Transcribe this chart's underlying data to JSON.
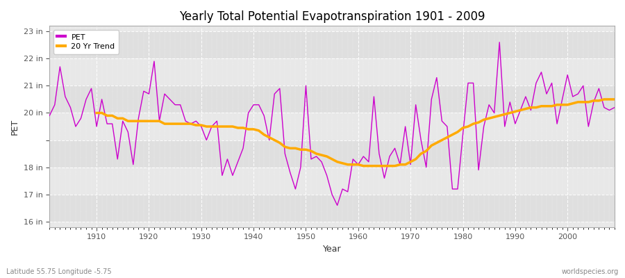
{
  "title": "Yearly Total Potential Evapotranspiration 1901 - 2009",
  "xlabel": "Year",
  "ylabel": "PET",
  "x_label_bottom_left": "Latitude 55.75 Longitude -5.75",
  "x_label_bottom_right": "worldspecies.org",
  "fig_bg_color": "#ffffff",
  "plot_bg_color": "#e8e8e8",
  "pet_color": "#cc00cc",
  "trend_color": "#ffaa00",
  "ylim": [
    15.8,
    23.2
  ],
  "yticks": [
    16,
    17,
    18,
    19,
    20,
    21,
    22,
    23
  ],
  "ytick_labels": [
    "16 in",
    "17 in",
    "18 in",
    "",
    "20 in",
    "21 in",
    "22 in",
    "23 in"
  ],
  "xlim": [
    1901,
    2009
  ],
  "years": [
    1901,
    1902,
    1903,
    1904,
    1905,
    1906,
    1907,
    1908,
    1909,
    1910,
    1911,
    1912,
    1913,
    1914,
    1915,
    1916,
    1917,
    1918,
    1919,
    1920,
    1921,
    1922,
    1923,
    1924,
    1925,
    1926,
    1927,
    1928,
    1929,
    1930,
    1931,
    1932,
    1933,
    1934,
    1935,
    1936,
    1937,
    1938,
    1939,
    1940,
    1941,
    1942,
    1943,
    1944,
    1945,
    1946,
    1947,
    1948,
    1949,
    1950,
    1951,
    1952,
    1953,
    1954,
    1955,
    1956,
    1957,
    1958,
    1959,
    1960,
    1961,
    1962,
    1963,
    1964,
    1965,
    1966,
    1967,
    1968,
    1969,
    1970,
    1971,
    1972,
    1973,
    1974,
    1975,
    1976,
    1977,
    1978,
    1979,
    1980,
    1981,
    1982,
    1983,
    1984,
    1985,
    1986,
    1987,
    1988,
    1989,
    1990,
    1991,
    1992,
    1993,
    1994,
    1995,
    1996,
    1997,
    1998,
    1999,
    2000,
    2001,
    2002,
    2003,
    2004,
    2005,
    2006,
    2007,
    2008,
    2009
  ],
  "pet": [
    19.9,
    20.3,
    21.7,
    20.6,
    20.2,
    19.5,
    19.8,
    20.5,
    20.9,
    19.5,
    20.5,
    19.6,
    19.6,
    18.3,
    19.7,
    19.3,
    18.1,
    19.8,
    20.8,
    20.7,
    21.9,
    19.7,
    20.7,
    20.5,
    20.3,
    20.3,
    19.7,
    19.6,
    19.7,
    19.5,
    19.0,
    19.5,
    19.7,
    17.7,
    18.3,
    17.7,
    18.2,
    18.7,
    20.0,
    20.3,
    20.3,
    19.9,
    19.0,
    20.7,
    20.9,
    18.5,
    17.8,
    17.2,
    18.0,
    21.0,
    18.3,
    18.4,
    18.2,
    17.7,
    17.0,
    16.6,
    17.2,
    17.1,
    18.3,
    18.1,
    18.4,
    18.2,
    20.6,
    18.5,
    17.6,
    18.4,
    18.7,
    18.1,
    19.5,
    18.1,
    20.3,
    19.0,
    18.0,
    20.5,
    21.3,
    19.7,
    19.5,
    17.2,
    17.2,
    19.2,
    21.1,
    21.1,
    17.9,
    19.5,
    20.3,
    20.0,
    22.6,
    19.5,
    20.4,
    19.6,
    20.1,
    20.6,
    20.1,
    21.1,
    21.5,
    20.7,
    21.1,
    19.6,
    20.5,
    21.4,
    20.6,
    20.7,
    21.0,
    19.5,
    20.4,
    20.9,
    20.2,
    20.1,
    20.2
  ],
  "trend_years": [
    1910,
    1911,
    1912,
    1913,
    1914,
    1915,
    1916,
    1917,
    1918,
    1919,
    1920,
    1921,
    1922,
    1923,
    1924,
    1925,
    1926,
    1927,
    1928,
    1929,
    1930,
    1931,
    1932,
    1933,
    1934,
    1935,
    1936,
    1937,
    1938,
    1939,
    1940,
    1941,
    1942,
    1943,
    1944,
    1945,
    1946,
    1947,
    1948,
    1949,
    1950,
    1951,
    1952,
    1953,
    1954,
    1955,
    1956,
    1957,
    1958,
    1959,
    1960,
    1961,
    1962,
    1963,
    1964,
    1965,
    1966,
    1967,
    1968,
    1969,
    1970,
    1971,
    1972,
    1973,
    1974,
    1975,
    1976,
    1977,
    1978,
    1979,
    1980,
    1981,
    1982,
    1983,
    1984,
    1985,
    1986,
    1987,
    1988,
    1989,
    1990,
    1991,
    1992,
    1993,
    1994,
    1995,
    1996,
    1997,
    1998,
    1999,
    2000,
    2001,
    2002,
    2003,
    2004,
    2005,
    2006,
    2007,
    2008,
    2009
  ],
  "trend": [
    20.0,
    20.0,
    19.9,
    19.9,
    19.8,
    19.8,
    19.7,
    19.7,
    19.7,
    19.7,
    19.7,
    19.7,
    19.7,
    19.6,
    19.6,
    19.6,
    19.6,
    19.6,
    19.6,
    19.55,
    19.55,
    19.5,
    19.5,
    19.5,
    19.5,
    19.5,
    19.5,
    19.45,
    19.45,
    19.4,
    19.4,
    19.35,
    19.2,
    19.1,
    19.0,
    18.9,
    18.75,
    18.7,
    18.7,
    18.65,
    18.65,
    18.6,
    18.5,
    18.45,
    18.4,
    18.3,
    18.2,
    18.15,
    18.1,
    18.1,
    18.1,
    18.05,
    18.05,
    18.05,
    18.05,
    18.05,
    18.05,
    18.05,
    18.1,
    18.1,
    18.2,
    18.3,
    18.5,
    18.6,
    18.8,
    18.9,
    19.0,
    19.1,
    19.2,
    19.3,
    19.45,
    19.5,
    19.6,
    19.65,
    19.75,
    19.8,
    19.85,
    19.9,
    19.95,
    20.0,
    20.05,
    20.1,
    20.15,
    20.2,
    20.2,
    20.25,
    20.25,
    20.25,
    20.3,
    20.3,
    20.3,
    20.35,
    20.4,
    20.4,
    20.4,
    20.45,
    20.45,
    20.5,
    20.5,
    20.5
  ]
}
